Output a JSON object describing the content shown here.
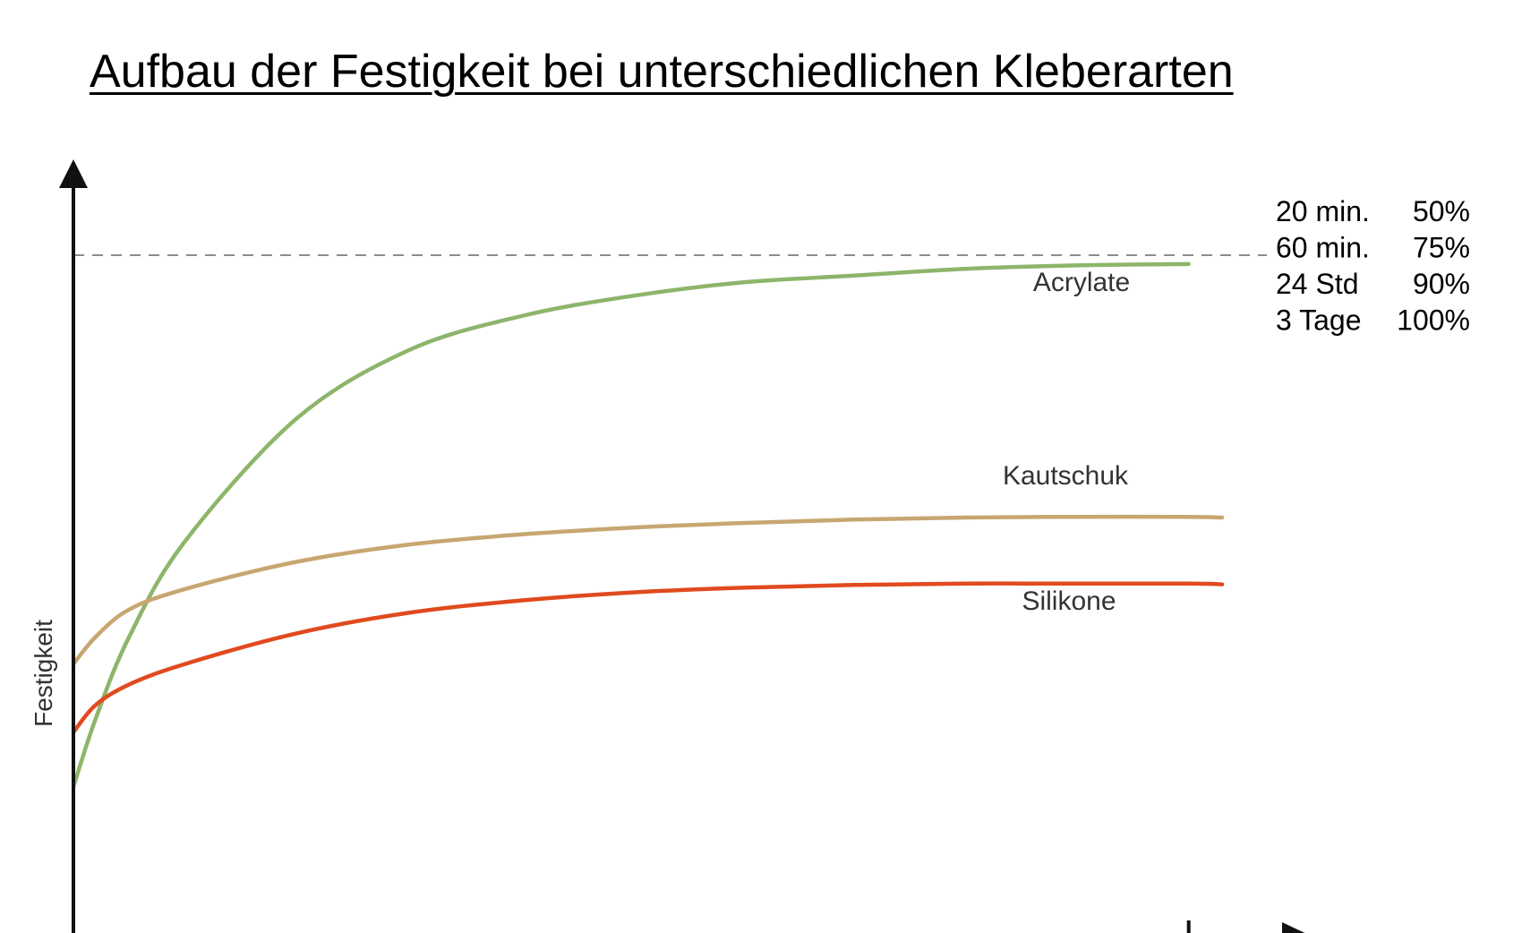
{
  "chart_data": {
    "type": "line",
    "title": "Aufbau der Festigkeit bei unterschiedlichen Kleberarten",
    "xlabel": "",
    "ylabel": "Festigkeit",
    "x": [
      0,
      2,
      5,
      10,
      20,
      30,
      40,
      50,
      60,
      70,
      80,
      90,
      100
    ],
    "ylim": [
      0,
      100
    ],
    "xlim": [
      0,
      110
    ],
    "grid": false,
    "legend": "none",
    "series": [
      {
        "name": "Acrylate",
        "color": "#8db56b",
        "x": [
          0,
          2,
          5,
          10,
          20,
          30,
          40,
          50,
          60,
          70,
          80,
          90,
          100
        ],
        "values": [
          22,
          32,
          44,
          58,
          76,
          86,
          91,
          94,
          96,
          97,
          98,
          98.5,
          98.7
        ]
      },
      {
        "name": "Kautschuk",
        "color": "#c7a671",
        "x": [
          0,
          2,
          5,
          10,
          20,
          30,
          40,
          50,
          60,
          70,
          80,
          90,
          100,
          103
        ],
        "values": [
          40,
          44,
          48,
          51,
          55,
          57.5,
          59,
          60,
          60.7,
          61.2,
          61.5,
          61.6,
          61.6,
          61.5
        ]
      },
      {
        "name": "Silikone",
        "color": "#e04a1e",
        "x": [
          0,
          2,
          5,
          10,
          20,
          30,
          40,
          50,
          60,
          70,
          80,
          90,
          100,
          103
        ],
        "values": [
          30,
          34,
          37,
          40,
          44.5,
          47.5,
          49.3,
          50.5,
          51.2,
          51.6,
          51.8,
          51.8,
          51.8,
          51.7
        ]
      }
    ],
    "reference_line": {
      "y": 100,
      "style": "dashed",
      "color": "#666666"
    },
    "x_tick": 100,
    "annotation_table": [
      {
        "time": "20 min.",
        "value": "50%"
      },
      {
        "time": "60 min.",
        "value": "75%"
      },
      {
        "time": "24 Std",
        "value": "90%"
      },
      {
        "time": "3 Tage",
        "value": "100%"
      }
    ]
  }
}
